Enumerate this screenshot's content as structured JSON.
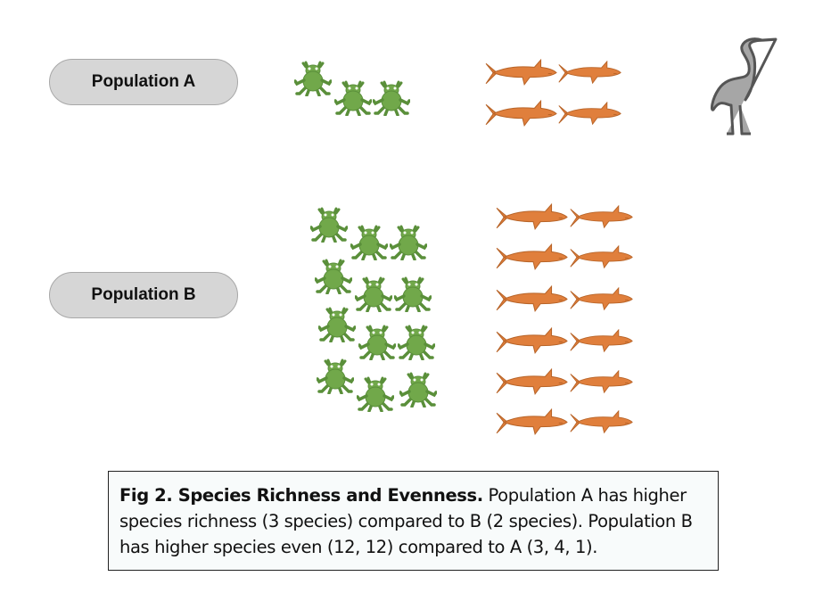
{
  "populations": [
    {
      "label": "Population A",
      "counts": {
        "frog": 3,
        "shark": 4,
        "heron": 1
      }
    },
    {
      "label": "Population B",
      "counts": {
        "frog": 12,
        "shark": 12,
        "heron": 0
      }
    }
  ],
  "caption": {
    "title": "Fig 2. Species Richness and Evenness.",
    "body": " Population A has higher species richness (3 species) compared to B (2 species). Population B has higher species even (12, 12) compared to A (3, 4, 1)."
  },
  "colors": {
    "frog": "#71a84a",
    "frog_outline": "#5a8f3a",
    "shark": "#e07f3c",
    "shark_outline": "#b86428",
    "heron": "#a6a6a6",
    "heron_outline": "#555555",
    "pill": "#d6d6d6"
  }
}
